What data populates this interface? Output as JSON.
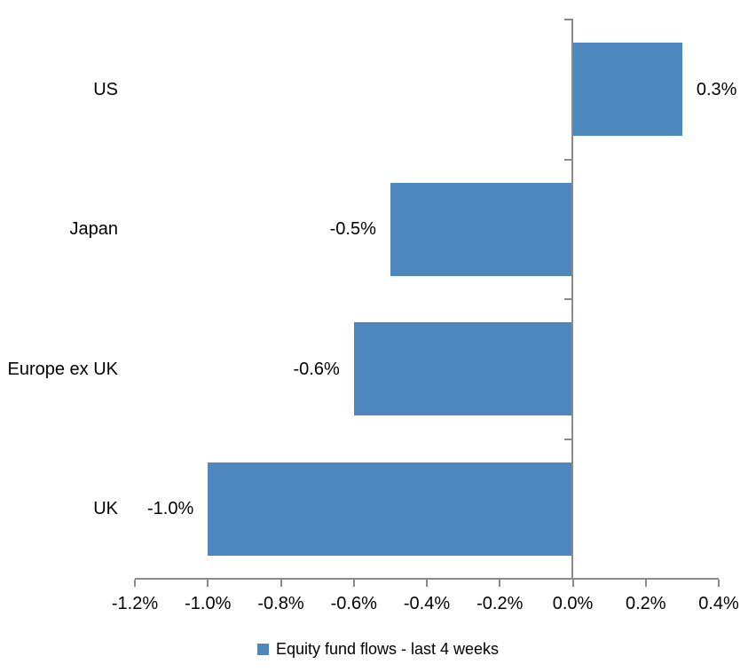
{
  "chart_data": {
    "type": "bar",
    "orientation": "horizontal",
    "legend": "Equity fund flows - last 4 weeks",
    "legend_position": "bottom-center",
    "grid": false,
    "categories": [
      "US",
      "Japan",
      "Europe ex UK",
      "UK"
    ],
    "series": [
      {
        "name": "Equity fund flows - last 4 weeks",
        "points": [
          {
            "category": "US",
            "value": 0.3,
            "label": "0.3%"
          },
          {
            "category": "Japan",
            "value": -0.5,
            "label": "-0.5%"
          },
          {
            "category": "Europe ex UK",
            "value": -0.6,
            "label": "-0.6%"
          },
          {
            "category": "UK",
            "value": -1.0,
            "label": "-1.0%"
          }
        ]
      }
    ],
    "x_axis": {
      "min": -1.2,
      "max": 0.4,
      "tick_step": 0.2,
      "unit": "%",
      "tick_labels": [
        "-1.2%",
        "-1.0%",
        "-0.8%",
        "-0.6%",
        "-0.4%",
        "-0.2%",
        "0.0%",
        "0.2%",
        "0.4%"
      ]
    },
    "colors": {
      "bar": "#4E87BD",
      "axis": "#8A8A8A",
      "text": "#000000",
      "background": "#FFFFFF"
    }
  }
}
